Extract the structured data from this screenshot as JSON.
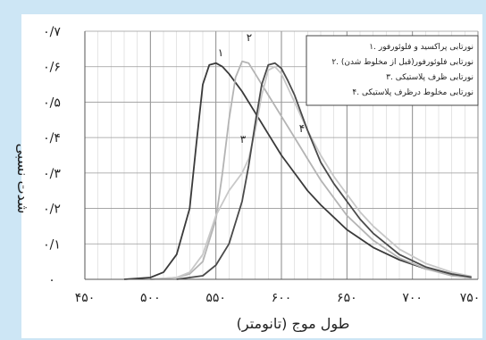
{
  "chart_data": {
    "type": "line",
    "xlabel": "طول موج (تانومتر)",
    "ylabel": "شدت نسبی",
    "xlim": [
      450,
      750
    ],
    "ylim": [
      0,
      0.7
    ],
    "x_ticks": [
      450,
      500,
      550,
      600,
      650,
      700,
      750
    ],
    "x_tick_labels": [
      "۴۵۰",
      "۵۰۰",
      "۵۵۰",
      "۶۰۰",
      "۶۵۰",
      "۷۰۰",
      "۷۵۰"
    ],
    "y_ticks": [
      0,
      0.1,
      0.2,
      0.3,
      0.4,
      0.5,
      0.6,
      0.7
    ],
    "y_tick_labels": [
      "۰",
      "۰/۱",
      "۰/۲",
      "۰/۳",
      "۰/۴",
      "۰/۵",
      "۰/۶",
      "۰/۷"
    ],
    "grid": true,
    "legend_position": "top-right",
    "legend": [
      "۱. نورتابی پراکسید و فلوئورفور",
      "۲. نورتابی فلوئورفور(قبل از مخلوط شدن)",
      "۳. نورتابی ظرف پلاستیکی",
      "۴. نورتابی مخلوط درظرف پلاستیکی"
    ],
    "series": [
      {
        "label": "۱",
        "color": "#3a3a3a",
        "x": [
          480,
          500,
          510,
          520,
          530,
          535,
          540,
          545,
          550,
          555,
          560,
          570,
          580,
          590,
          600,
          610,
          620,
          630,
          650,
          670,
          690,
          710,
          730,
          745
        ],
        "y": [
          0,
          0.005,
          0.02,
          0.07,
          0.2,
          0.38,
          0.55,
          0.605,
          0.61,
          0.6,
          0.58,
          0.53,
          0.47,
          0.41,
          0.35,
          0.3,
          0.25,
          0.21,
          0.14,
          0.09,
          0.055,
          0.03,
          0.012,
          0.005
        ]
      },
      {
        "label": "۲",
        "color": "#b4b4b4",
        "x": [
          500,
          520,
          530,
          540,
          550,
          555,
          560,
          565,
          570,
          575,
          580,
          585,
          590,
          600,
          610,
          620,
          630,
          650,
          670,
          690,
          710,
          730,
          745
        ],
        "y": [
          0,
          0.005,
          0.015,
          0.05,
          0.17,
          0.3,
          0.45,
          0.57,
          0.615,
          0.61,
          0.58,
          0.55,
          0.52,
          0.46,
          0.4,
          0.34,
          0.28,
          0.18,
          0.11,
          0.06,
          0.03,
          0.01,
          0.004
        ]
      },
      {
        "label": "۳",
        "color": "#c8c8c8",
        "x": [
          500,
          520,
          530,
          540,
          550,
          560,
          570,
          575,
          580,
          585,
          590,
          595,
          600,
          610,
          620,
          630,
          640,
          650,
          660,
          670,
          690,
          710,
          730,
          745
        ],
        "y": [
          0,
          0.005,
          0.02,
          0.07,
          0.18,
          0.25,
          0.3,
          0.34,
          0.42,
          0.52,
          0.59,
          0.6,
          0.58,
          0.5,
          0.42,
          0.35,
          0.29,
          0.24,
          0.19,
          0.15,
          0.085,
          0.045,
          0.02,
          0.008
        ]
      },
      {
        "label": "۴",
        "color": "#4a4a4a",
        "x": [
          520,
          540,
          550,
          560,
          570,
          575,
          580,
          585,
          590,
          595,
          600,
          605,
          610,
          620,
          630,
          640,
          650,
          660,
          670,
          690,
          710,
          730,
          745
        ],
        "y": [
          0,
          0.01,
          0.04,
          0.1,
          0.22,
          0.32,
          0.44,
          0.55,
          0.605,
          0.61,
          0.595,
          0.56,
          0.52,
          0.42,
          0.33,
          0.27,
          0.22,
          0.17,
          0.13,
          0.07,
          0.035,
          0.015,
          0.006
        ]
      }
    ]
  }
}
